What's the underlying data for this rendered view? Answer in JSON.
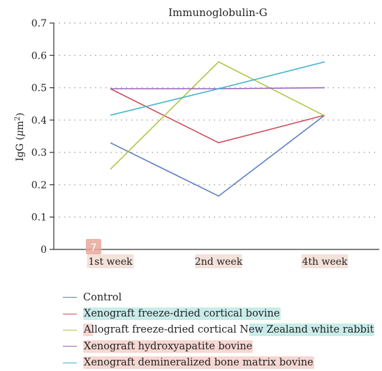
{
  "chart_data": {
    "type": "line",
    "title": "Immunoglobulin-G",
    "xlabel": "",
    "ylabel": "IgG (μm²)",
    "ylim": [
      0,
      0.7
    ],
    "yticks": [
      "0",
      "0.1",
      "0.2",
      "0.3",
      "0.4",
      "0.5",
      "0.6",
      "0.7"
    ],
    "categories": [
      "1st week",
      "2nd week",
      "4th week"
    ],
    "grid": "horizontal-dotted",
    "legend_position": "bottom",
    "series": [
      {
        "name": "Control",
        "color": "#5b7fc0",
        "values": [
          0.33,
          0.165,
          0.415
        ]
      },
      {
        "name": "Xenograft freeze-dried cortical bovine",
        "color": "#cd4a56",
        "values": [
          0.497,
          0.33,
          0.415
        ]
      },
      {
        "name": "Allograft freeze-dried cortical New Zealand white rabbit",
        "color": "#b1c548",
        "values": [
          0.248,
          0.58,
          0.413
        ]
      },
      {
        "name": "Xenograft hydroxyapatite bovine",
        "color": "#9a63bd",
        "values": [
          0.497,
          0.497,
          0.5
        ]
      },
      {
        "name": "Xenograft demineralized bone matrix bovine",
        "color": "#3db3cc",
        "values": [
          0.415,
          0.497,
          0.58
        ]
      }
    ]
  },
  "overlay_marker": "7",
  "highlight_colors": {
    "cyan": "#c9ece9",
    "pink": "#f6d7d2",
    "marker": "#e8a89a"
  }
}
